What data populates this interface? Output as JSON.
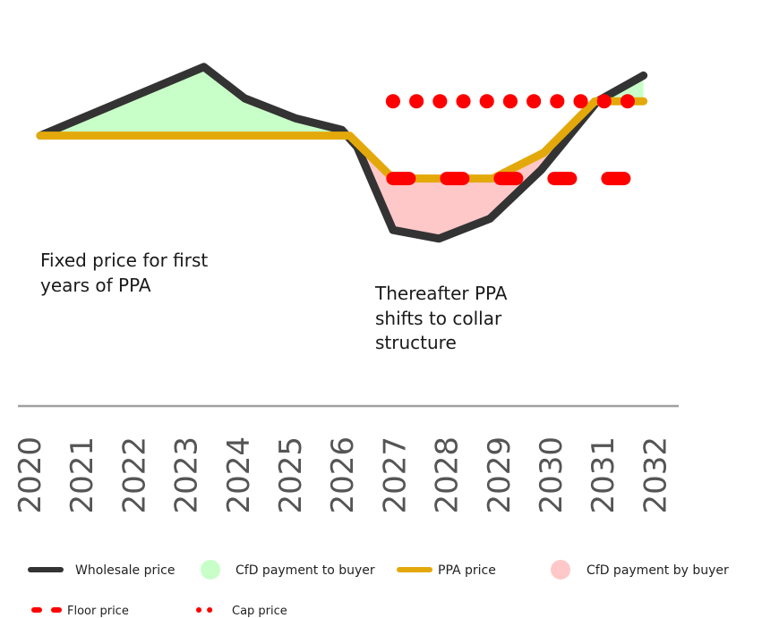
{
  "chart_data": {
    "type": "line",
    "title": "",
    "xlabel": "",
    "ylabel": "",
    "x": [
      2020,
      2021,
      2022,
      2023,
      2024,
      2025,
      2026,
      2027,
      2028,
      2029,
      2030,
      2031,
      2032
    ],
    "tick_labels": [
      "2020",
      "2021",
      "2022",
      "2023",
      "2024",
      "2025",
      "2026",
      "2027",
      "2028",
      "2029",
      "2030",
      "2031",
      "2032"
    ],
    "ylim": [
      0,
      100
    ],
    "grid": false,
    "wholesale_price": {
      "x": [
        2020,
        2023.2,
        2024,
        2025,
        2025.9,
        2026.2,
        2026.9,
        2027.8,
        2028.8,
        2029.8,
        2030.9,
        2031.8
      ],
      "y": [
        62,
        86,
        75,
        68,
        64,
        58,
        29,
        26,
        33,
        50,
        74,
        83
      ]
    },
    "ppa_price": {
      "x": [
        2020,
        2026.05,
        2026.9,
        2028.85,
        2029.85,
        2030.85,
        2031.8
      ],
      "y": [
        62,
        62,
        47,
        47,
        56,
        74,
        74
      ]
    },
    "floor_price": {
      "x": [
        2026.9,
        2031.8
      ],
      "y": 47
    },
    "cap_price": {
      "x": [
        2026.9,
        2031.8
      ],
      "y": 74
    },
    "annotations": [
      {
        "id": "fixed",
        "lines": [
          "Fixed price for first",
          "years of PPA"
        ]
      },
      {
        "id": "collar",
        "lines": [
          "Thereafter PPA",
          "shifts to collar",
          "structure"
        ]
      }
    ],
    "legend": {
      "wholesale": "Wholesale price",
      "cfd_to_buyer": "CfD payment to buyer",
      "ppa": "PPA price",
      "cfd_by_buyer": "CfD payment by buyer",
      "floor": "Floor price",
      "cap": "Cap price"
    },
    "colors": {
      "wholesale": "#333333",
      "ppa": "#e3a90b",
      "floor_cap": "#ff0000",
      "cfd_to_buyer": "#c8ffc8",
      "cfd_by_buyer": "#ffc8c8",
      "axis": "#a0a0a0",
      "tick": "#555555"
    }
  }
}
